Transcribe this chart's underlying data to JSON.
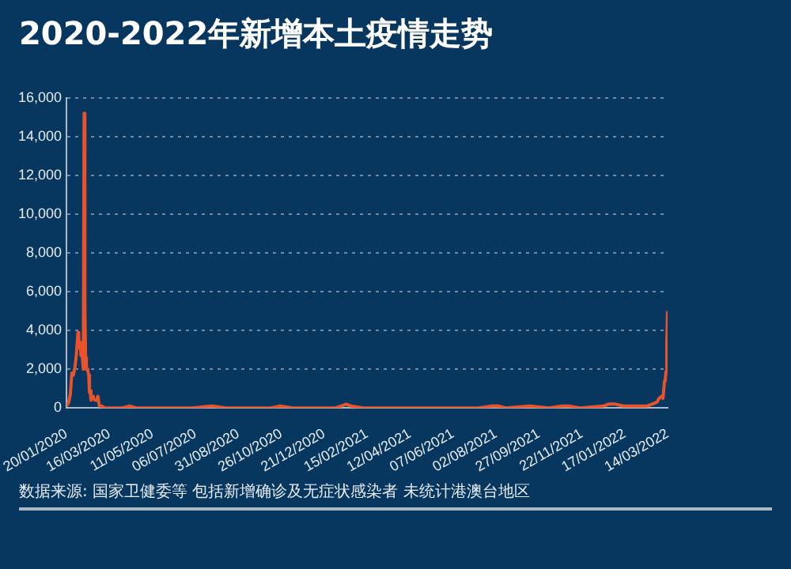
{
  "chart_data": {
    "type": "line",
    "title": "2020-2022年新增本土疫情走势",
    "annotations": [
      "数据来源: 国家卫健委等 包括新增确诊及无症状感染者 未统计港澳台地区"
    ],
    "grid": "y",
    "marker": "none",
    "legend": false,
    "xlim": [
      "2020-01-20",
      "2022-03-14"
    ],
    "xticks": [
      {
        "value": "2020-01-20",
        "label": "20/01/2020"
      },
      {
        "value": "2020-03-16",
        "label": "16/03/2020"
      },
      {
        "value": "2020-05-11",
        "label": "11/05/2020"
      },
      {
        "value": "2020-07-06",
        "label": "06/07/2020"
      },
      {
        "value": "2020-08-31",
        "label": "31/08/2020"
      },
      {
        "value": "2020-10-26",
        "label": "26/10/2020"
      },
      {
        "value": "2020-12-21",
        "label": "21/12/2020"
      },
      {
        "value": "2021-02-15",
        "label": "15/02/2021"
      },
      {
        "value": "2021-04-12",
        "label": "12/04/2021"
      },
      {
        "value": "2021-06-07",
        "label": "07/06/2021"
      },
      {
        "value": "2021-08-02",
        "label": "02/08/2021"
      },
      {
        "value": "2021-09-27",
        "label": "27/09/2021"
      },
      {
        "value": "2021-11-22",
        "label": "22/11/2021"
      },
      {
        "value": "2022-01-17",
        "label": "17/01/2022"
      },
      {
        "value": "2022-03-14",
        "label": "14/03/2022"
      }
    ],
    "ylim": [
      0,
      16000
    ],
    "yticks": [
      {
        "value": 0,
        "label": "0"
      },
      {
        "value": 2000,
        "label": "2,000"
      },
      {
        "value": 4000,
        "label": "4,000"
      },
      {
        "value": 6000,
        "label": "6,000"
      },
      {
        "value": 8000,
        "label": "8,000"
      },
      {
        "value": 10000,
        "label": "10,000"
      },
      {
        "value": 12000,
        "label": "12,000"
      },
      {
        "value": 14000,
        "label": "14,000"
      },
      {
        "value": 16000,
        "label": "16,000"
      }
    ],
    "x": [
      "2020-01-20",
      "2020-01-23",
      "2020-01-25",
      "2020-01-27",
      "2020-01-29",
      "2020-01-31",
      "2020-02-02",
      "2020-02-04",
      "2020-02-05",
      "2020-02-06",
      "2020-02-07",
      "2020-02-08",
      "2020-02-09",
      "2020-02-10",
      "2020-02-11",
      "2020-02-12",
      "2020-02-13",
      "2020-02-14",
      "2020-02-15",
      "2020-02-16",
      "2020-02-17",
      "2020-02-18",
      "2020-02-19",
      "2020-02-20",
      "2020-02-21",
      "2020-02-22",
      "2020-02-24",
      "2020-02-26",
      "2020-02-28",
      "2020-03-01",
      "2020-03-03",
      "2020-03-06",
      "2020-03-10",
      "2020-03-20",
      "2020-04-01",
      "2020-04-12",
      "2020-04-20",
      "2020-05-15",
      "2020-06-13",
      "2020-07-01",
      "2020-07-28",
      "2020-08-15",
      "2020-09-15",
      "2020-10-12",
      "2020-10-25",
      "2020-11-10",
      "2020-12-20",
      "2021-01-05",
      "2021-01-12",
      "2021-01-19",
      "2021-01-25",
      "2021-02-10",
      "2021-03-15",
      "2021-04-05",
      "2021-05-20",
      "2021-06-10",
      "2021-07-10",
      "2021-07-28",
      "2021-08-05",
      "2021-08-15",
      "2021-09-15",
      "2021-10-10",
      "2021-10-28",
      "2021-11-05",
      "2021-11-20",
      "2021-12-20",
      "2021-12-27",
      "2022-01-05",
      "2022-01-15",
      "2022-02-01",
      "2022-02-15",
      "2022-02-28",
      "2022-03-03",
      "2022-03-06",
      "2022-03-08",
      "2022-03-10",
      "2022-03-11",
      "2022-03-12",
      "2022-03-13",
      "2022-03-14"
    ],
    "series": [
      {
        "color": "#e8532b",
        "values": [
          100,
          300,
          700,
          1800,
          1700,
          2100,
          2800,
          3900,
          3700,
          3100,
          3400,
          2700,
          3100,
          2500,
          2000,
          15200,
          5100,
          2600,
          2000,
          2000,
          1900,
          1700,
          800,
          900,
          400,
          600,
          500,
          400,
          400,
          600,
          100,
          100,
          0,
          0,
          0,
          100,
          0,
          0,
          0,
          0,
          100,
          0,
          0,
          0,
          100,
          0,
          0,
          0,
          100,
          200,
          100,
          0,
          0,
          0,
          0,
          0,
          0,
          100,
          100,
          0,
          100,
          0,
          100,
          100,
          0,
          100,
          200,
          200,
          100,
          100,
          100,
          300,
          500,
          600,
          500,
          1400,
          1500,
          1900,
          3500,
          5000
        ]
      }
    ]
  }
}
